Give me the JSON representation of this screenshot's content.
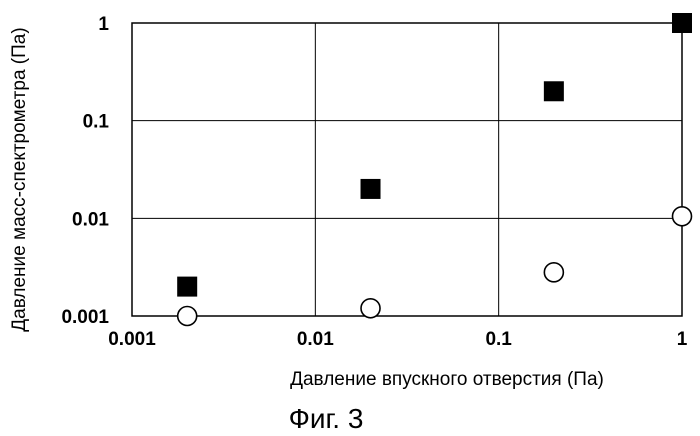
{
  "chart_data": {
    "type": "scatter",
    "title": "",
    "caption": "Фиг. 3",
    "xlabel": "Давление впускного отверстия (Па)",
    "ylabel": "Давление масс-спектрометра (Па)",
    "xscale": "log",
    "yscale": "log",
    "xlim": [
      0.001,
      1
    ],
    "ylim": [
      0.001,
      1
    ],
    "grid": true,
    "x_ticks": [
      0.001,
      0.01,
      0.1,
      1
    ],
    "x_tick_labels": [
      "0.001",
      "0.01",
      "0.1",
      "1"
    ],
    "y_ticks": [
      0.001,
      0.01,
      0.1,
      1
    ],
    "y_tick_labels": [
      "0.001",
      "0.01",
      "0.1",
      "1"
    ],
    "series": [
      {
        "marker": "filled-square",
        "color": "#000000",
        "points": [
          {
            "x": 0.002,
            "y": 0.002
          },
          {
            "x": 0.02,
            "y": 0.02
          },
          {
            "x": 0.2,
            "y": 0.2
          },
          {
            "x": 1,
            "y": 1
          }
        ]
      },
      {
        "marker": "open-circle",
        "color": "#000000",
        "points": [
          {
            "x": 0.002,
            "y": 0.001
          },
          {
            "x": 0.02,
            "y": 0.0012
          },
          {
            "x": 0.2,
            "y": 0.0028
          },
          {
            "x": 1,
            "y": 0.0105
          }
        ]
      }
    ]
  }
}
